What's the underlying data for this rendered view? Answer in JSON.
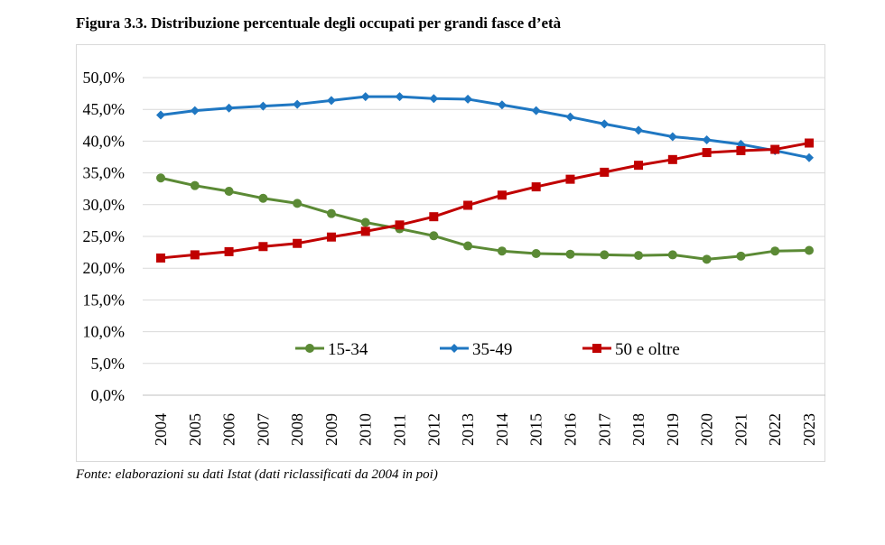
{
  "figure": {
    "title": "Figura 3.3. Distribuzione percentuale degli occupati per grandi fasce d’età",
    "source": "Fonte: elaborazioni su dati Istat (dati riclassificati da 2004 in poi)"
  },
  "chart_data": {
    "type": "line",
    "title": "Figura 3.3. Distribuzione percentuale degli occupati per grandi fasce d’età",
    "xlabel": "",
    "ylabel": "",
    "ylim": [
      0,
      50
    ],
    "ytick_step": 5,
    "ytick_labels": [
      "0,0%",
      "5,0%",
      "10,0%",
      "15,0%",
      "20,0%",
      "25,0%",
      "30,0%",
      "35,0%",
      "40,0%",
      "45,0%",
      "50,0%"
    ],
    "grid": true,
    "legend_position": "inside-bottom",
    "x": [
      "2004",
      "2005",
      "2006",
      "2007",
      "2008",
      "2009",
      "2010",
      "2011",
      "2012",
      "2013",
      "2014",
      "2015",
      "2016",
      "2017",
      "2018",
      "2019",
      "2020",
      "2021",
      "2022",
      "2023"
    ],
    "series": [
      {
        "name": "15-34",
        "color": "#5b8a35",
        "marker": "circle",
        "values": [
          34.2,
          33.0,
          32.1,
          31.0,
          30.2,
          28.6,
          27.2,
          26.2,
          25.1,
          23.5,
          22.7,
          22.3,
          22.2,
          22.1,
          22.0,
          22.1,
          21.4,
          21.9,
          22.7,
          22.8
        ]
      },
      {
        "name": "35-49",
        "color": "#1f77c2",
        "marker": "diamond",
        "values": [
          44.1,
          44.8,
          45.2,
          45.5,
          45.8,
          46.4,
          47.0,
          47.0,
          46.7,
          46.6,
          45.7,
          44.8,
          43.8,
          42.7,
          41.7,
          40.7,
          40.2,
          39.5,
          38.5,
          37.4
        ]
      },
      {
        "name": "50 e oltre",
        "color": "#c00000",
        "marker": "square",
        "values": [
          21.6,
          22.1,
          22.6,
          23.4,
          23.9,
          24.9,
          25.8,
          26.8,
          28.1,
          29.9,
          31.5,
          32.8,
          34.0,
          35.1,
          36.2,
          37.1,
          38.2,
          38.5,
          38.7,
          39.7
        ]
      }
    ]
  }
}
